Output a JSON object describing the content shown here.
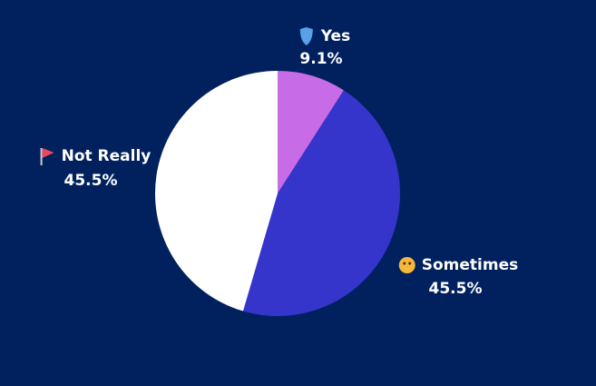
{
  "chart_data": {
    "type": "pie",
    "categories": [
      "Yes",
      "Sometimes",
      "Not Really"
    ],
    "values": [
      9.1,
      45.5,
      45.5
    ],
    "value_labels": [
      "9.1%",
      "45.5%",
      "45.5%"
    ],
    "colors": [
      "#c86be6",
      "#3535cc",
      "#ffffff"
    ]
  }
}
